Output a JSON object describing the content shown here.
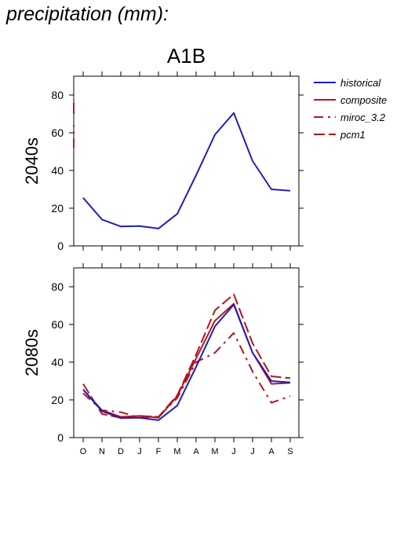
{
  "page_title": "precipitation (mm):",
  "scenario": "A1B",
  "months": [
    "O",
    "N",
    "D",
    "J",
    "F",
    "M",
    "A",
    "M",
    "J",
    "J",
    "A",
    "S"
  ],
  "colors": {
    "historical": "#1f1fbf",
    "future": "#b5161b",
    "axis": "#000000"
  },
  "legend": [
    {
      "name": "historical",
      "color": "#1f1fbf",
      "dash": "solid"
    },
    {
      "name": "composite",
      "color": "#b5161b",
      "dash": "solid"
    },
    {
      "name": "miroc_3.2",
      "color": "#b5161b",
      "dash": "dashdot"
    },
    {
      "name": "pcm1",
      "color": "#b5161b",
      "dash": "dashed"
    }
  ],
  "chart_data": [
    {
      "type": "line",
      "title": "A1B",
      "ylabel": "2040s",
      "categories": [
        "O",
        "N",
        "D",
        "J",
        "F",
        "M",
        "A",
        "M",
        "J",
        "J",
        "A",
        "S"
      ],
      "ylim": [
        0,
        90
      ],
      "yticks": [
        0,
        20,
        40,
        60,
        80
      ],
      "series": [
        {
          "name": "historical",
          "color": "#1f1fbf",
          "dash": "solid",
          "values": [
            25.5,
            14,
            10.3,
            10.5,
            9.2,
            17,
            37.5,
            59,
            70.5,
            45,
            30,
            29.3
          ]
        }
      ],
      "left_edge_dashes": [
        {
          "dash": "dashed",
          "color": "#b5161b",
          "y_from": 70,
          "y_to": 76
        },
        {
          "dash": "dashdot",
          "color": "#b5161b",
          "y_from": 52,
          "y_to": 64
        }
      ]
    },
    {
      "type": "line",
      "ylabel": "2080s",
      "categories": [
        "O",
        "N",
        "D",
        "J",
        "F",
        "M",
        "A",
        "M",
        "J",
        "J",
        "A",
        "S"
      ],
      "ylim": [
        0,
        90
      ],
      "yticks": [
        0,
        20,
        40,
        60,
        80
      ],
      "series": [
        {
          "name": "historical",
          "color": "#1f1fbf",
          "dash": "solid",
          "values": [
            25.5,
            14,
            10.3,
            10.5,
            9.2,
            17,
            37.5,
            59,
            70.5,
            45,
            30,
            29.3
          ]
        },
        {
          "name": "composite",
          "color": "#b5161b",
          "dash": "solid",
          "values": [
            25.5,
            14.5,
            11,
            11.5,
            10.5,
            22,
            42,
            62,
            71,
            45,
            28.5,
            29
          ]
        },
        {
          "name": "miroc_3.2",
          "color": "#b5161b",
          "dash": "dashdot",
          "values": [
            23.5,
            14.5,
            13.5,
            10.5,
            11,
            21,
            40,
            45,
            55.5,
            35,
            18.5,
            22
          ]
        },
        {
          "name": "pcm1",
          "color": "#b5161b",
          "dash": "dashed",
          "values": [
            28.5,
            12.5,
            10.5,
            11.5,
            11,
            22.5,
            44,
            67.5,
            76,
            50,
            32.5,
            31.5
          ]
        }
      ]
    }
  ]
}
